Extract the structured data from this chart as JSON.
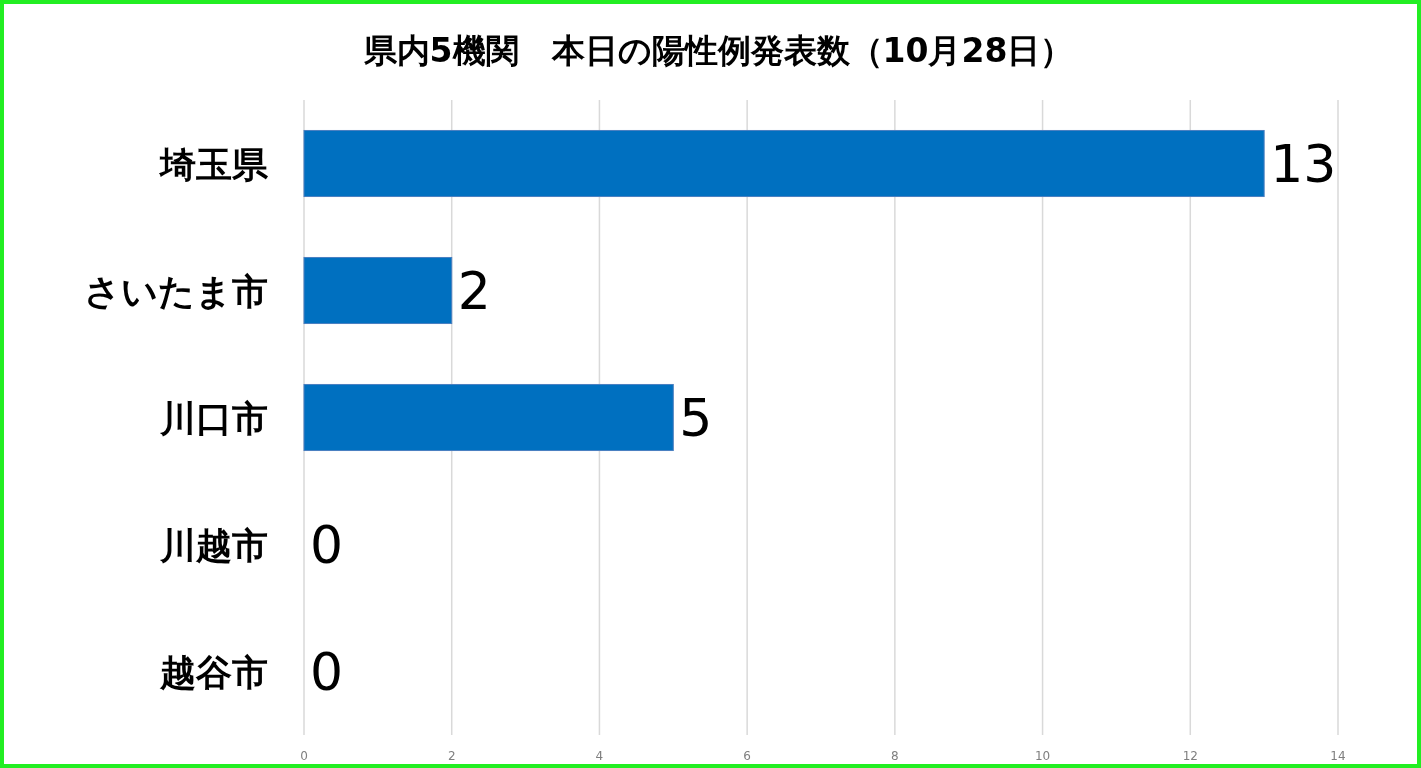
{
  "chart_data": {
    "type": "bar",
    "orientation": "horizontal",
    "title": "県内5機関　本日の陽性例発表数（10月28日）",
    "categories": [
      "埼玉県",
      "さいたま市",
      "川口市",
      "川越市",
      "越谷市"
    ],
    "values": [
      13,
      2,
      5,
      0,
      0
    ],
    "color": "#0070c0",
    "xlim": [
      0,
      14
    ],
    "xticks": [
      0,
      2,
      4,
      6,
      8,
      10,
      12,
      14
    ],
    "grid": "x",
    "data_labels": true
  }
}
